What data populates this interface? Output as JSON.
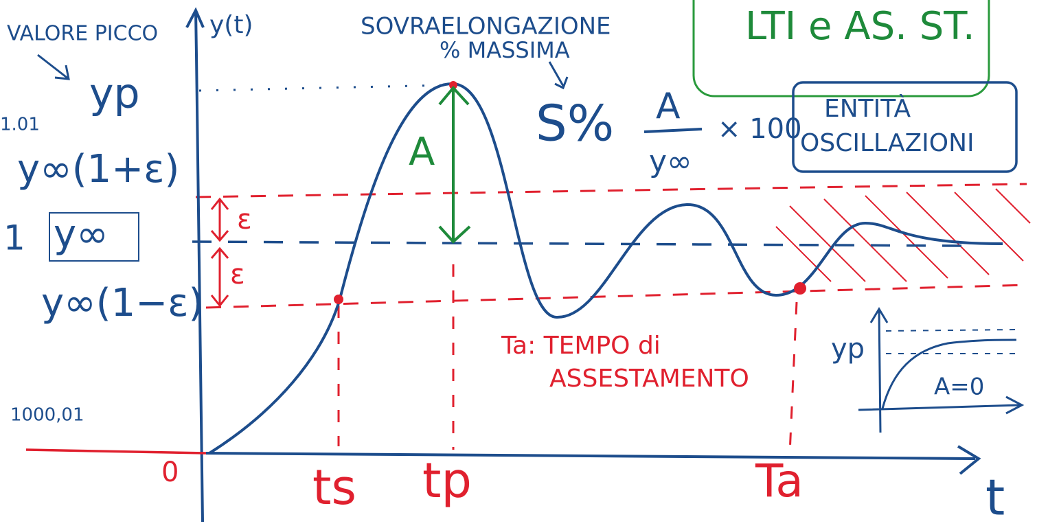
{
  "labels": {
    "peak_value": "VALORE PICCO",
    "y_axis": "y(t)",
    "overshoot": "SOVRAELONGAZIONE",
    "overshoot_sub": "% MASSIMA",
    "lti": "LTI e AS. ST.",
    "yp": "yp",
    "v101": "1.01",
    "upper": "y∞(1+ε)",
    "one": "1",
    "yinf": "y∞",
    "lower": "y∞(1−ε)",
    "eps_top": "ε",
    "eps_bottom": "ε",
    "amp": "A",
    "formula_lhs": "S%",
    "formula_num": "A",
    "formula_den": "y∞",
    "formula_times": "× 100",
    "entity": [
      "ENTITÀ",
      "OSCILLAZIONI"
    ],
    "ta_def": [
      "Ta: TEMPO di",
      "ASSESTAMENTO"
    ],
    "side": "1000,01",
    "origin": "0",
    "ts": "ts",
    "tp": "tp",
    "ta": "Ta",
    "t_axis": "t",
    "inset_yp": "yp",
    "inset_a": "A=0"
  }
}
